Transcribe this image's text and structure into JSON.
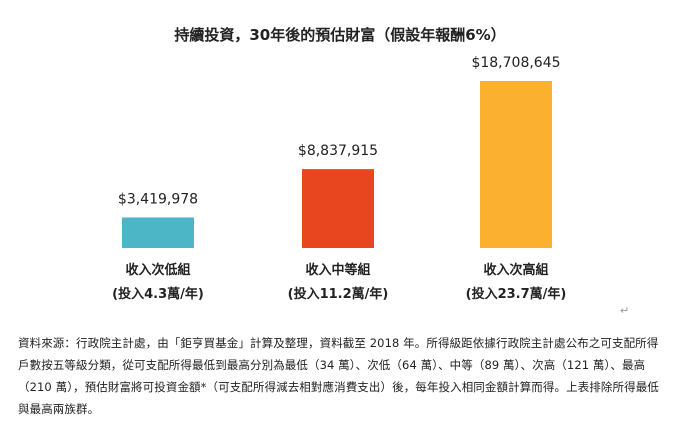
{
  "chart_data": {
    "type": "bar",
    "title": "持續投資，30年後的預估財富（假設年報酬6%）",
    "categories": [
      "收入次低組",
      "收入中等組",
      "收入次高組"
    ],
    "sublabels": [
      "(投入4.3萬/年)",
      "(投入11.2萬/年)",
      "(投入23.7萬/年)"
    ],
    "values": [
      3419978,
      8837915,
      18708645
    ],
    "value_labels": [
      "$3,419,978",
      "$8,837,915",
      "$18,708,645"
    ],
    "colors": [
      "#4cb6c6",
      "#e8461e",
      "#fbb030"
    ],
    "ylim": [
      0,
      18708645
    ],
    "grid": false,
    "legend": "none"
  },
  "note": {
    "text": "資料來源：行政院主計處，由「鉅亨買基金」計算及整理，資料截至 2018 年。所得級距依據行政院主計處公布之可支配所得戶數按五等級分類，從可支配所得最低到最高分別為最低（34 萬）、次低（64 萬）、中等（89 萬）、次高（121 萬）、最高（210 萬），預估財富將可投資金額*（可支配所得減去相對應消費支出）後，每年投入相同金額計算而得。上表排除所得最低與最高兩族群。",
    "return_mark": "↵"
  }
}
